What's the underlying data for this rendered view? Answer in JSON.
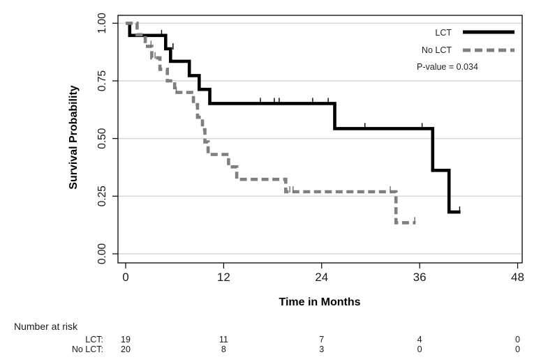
{
  "chart_data": {
    "type": "line",
    "subtype": "kaplan-meier-step",
    "title": "",
    "xlabel": "Time in Months",
    "ylabel": "Survival Probability",
    "xlim": [
      0,
      48
    ],
    "ylim": [
      0.0,
      1.0
    ],
    "grid": "horizontal-light",
    "x_ticks": [
      0,
      12,
      24,
      36,
      48
    ],
    "y_ticks": [
      {
        "label": "1.00",
        "value": 1.0
      },
      {
        "label": "0.75",
        "value": 0.75
      },
      {
        "label": "0.50",
        "value": 0.5
      },
      {
        "label": "0.25",
        "value": 0.25
      },
      {
        "label": "0.00",
        "value": 0.0
      }
    ],
    "series": [
      {
        "name": "LCT",
        "style": "solid",
        "color": "#000000",
        "points": [
          [
            0,
            1.0
          ],
          [
            0.5,
            1.0
          ],
          [
            0.5,
            0.947
          ],
          [
            4.9,
            0.947
          ],
          [
            4.9,
            0.889
          ],
          [
            5.5,
            0.889
          ],
          [
            5.5,
            0.835
          ],
          [
            7.8,
            0.835
          ],
          [
            7.8,
            0.773
          ],
          [
            9.0,
            0.773
          ],
          [
            9.0,
            0.713
          ],
          [
            10.3,
            0.713
          ],
          [
            10.3,
            0.652
          ],
          [
            25.6,
            0.652
          ],
          [
            25.6,
            0.543
          ],
          [
            37.6,
            0.543
          ],
          [
            37.6,
            0.362
          ],
          [
            39.6,
            0.362
          ],
          [
            39.6,
            0.181
          ],
          [
            41.0,
            0.181
          ]
        ],
        "censor_marks": [
          [
            4.4,
            0.947
          ],
          [
            5.8,
            0.889
          ],
          [
            16.5,
            0.652
          ],
          [
            18.2,
            0.652
          ],
          [
            18.8,
            0.652
          ],
          [
            22.9,
            0.652
          ],
          [
            24.8,
            0.652
          ],
          [
            29.3,
            0.543
          ],
          [
            36.3,
            0.543
          ],
          [
            40.9,
            0.181
          ]
        ]
      },
      {
        "name": "No LCT",
        "style": "dashed",
        "color": "#7f7f7f",
        "points": [
          [
            0,
            1.0
          ],
          [
            1.4,
            1.0
          ],
          [
            1.4,
            0.95
          ],
          [
            2.4,
            0.95
          ],
          [
            2.4,
            0.9
          ],
          [
            3.2,
            0.9
          ],
          [
            3.2,
            0.85
          ],
          [
            4.2,
            0.85
          ],
          [
            4.2,
            0.8
          ],
          [
            5.1,
            0.8
          ],
          [
            5.1,
            0.75
          ],
          [
            6.0,
            0.75
          ],
          [
            6.0,
            0.7
          ],
          [
            8.3,
            0.7
          ],
          [
            8.3,
            0.647
          ],
          [
            8.8,
            0.647
          ],
          [
            8.8,
            0.592
          ],
          [
            9.4,
            0.592
          ],
          [
            9.4,
            0.538
          ],
          [
            9.7,
            0.538
          ],
          [
            9.7,
            0.485
          ],
          [
            10.1,
            0.485
          ],
          [
            10.1,
            0.431
          ],
          [
            12.6,
            0.431
          ],
          [
            12.6,
            0.377
          ],
          [
            13.6,
            0.377
          ],
          [
            13.6,
            0.323
          ],
          [
            19.6,
            0.323
          ],
          [
            19.6,
            0.269
          ],
          [
            33.1,
            0.269
          ],
          [
            33.1,
            0.135
          ],
          [
            35.5,
            0.135
          ]
        ],
        "censor_marks": [
          [
            3.1,
            0.9
          ],
          [
            3.6,
            0.85
          ],
          [
            6.2,
            0.7
          ],
          [
            20.1,
            0.269
          ],
          [
            20.5,
            0.269
          ],
          [
            32.4,
            0.269
          ],
          [
            35.4,
            0.135
          ]
        ]
      }
    ],
    "legend": {
      "position": "top-right-inside",
      "items": [
        {
          "label": "LCT"
        },
        {
          "label": "No LCT"
        }
      ],
      "pvalue_label": "P-value = 0.034"
    },
    "risk_table": {
      "title": "Number at risk",
      "time_points": [
        0,
        12,
        24,
        36,
        48
      ],
      "rows": [
        {
          "label": "LCT:",
          "counts": [
            "19",
            "11",
            "7",
            "4",
            "0"
          ]
        },
        {
          "label": "No LCT:",
          "counts": [
            "20",
            "8",
            "3",
            "0",
            "0"
          ]
        }
      ]
    }
  }
}
